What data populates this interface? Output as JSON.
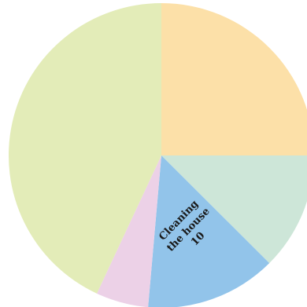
{
  "chart_data": {
    "type": "pie",
    "title": "",
    "slices": [
      {
        "label": "",
        "value": 18,
        "color": "#fce0a8"
      },
      {
        "label": "",
        "value": 9,
        "color": "#cde6d8"
      },
      {
        "label": "Cleaning the house",
        "value": 10,
        "color": "#92c4ea"
      },
      {
        "label": "",
        "value": 4,
        "color": "#ecd1e7"
      },
      {
        "label": "",
        "value": 31,
        "color": "#e3ecb8"
      }
    ],
    "start_angle_deg": 0,
    "direction": "clockwise",
    "slice_labels": [
      {
        "slice": 2,
        "lines": [
          "Cleaning",
          "the house",
          "10"
        ]
      }
    ]
  }
}
